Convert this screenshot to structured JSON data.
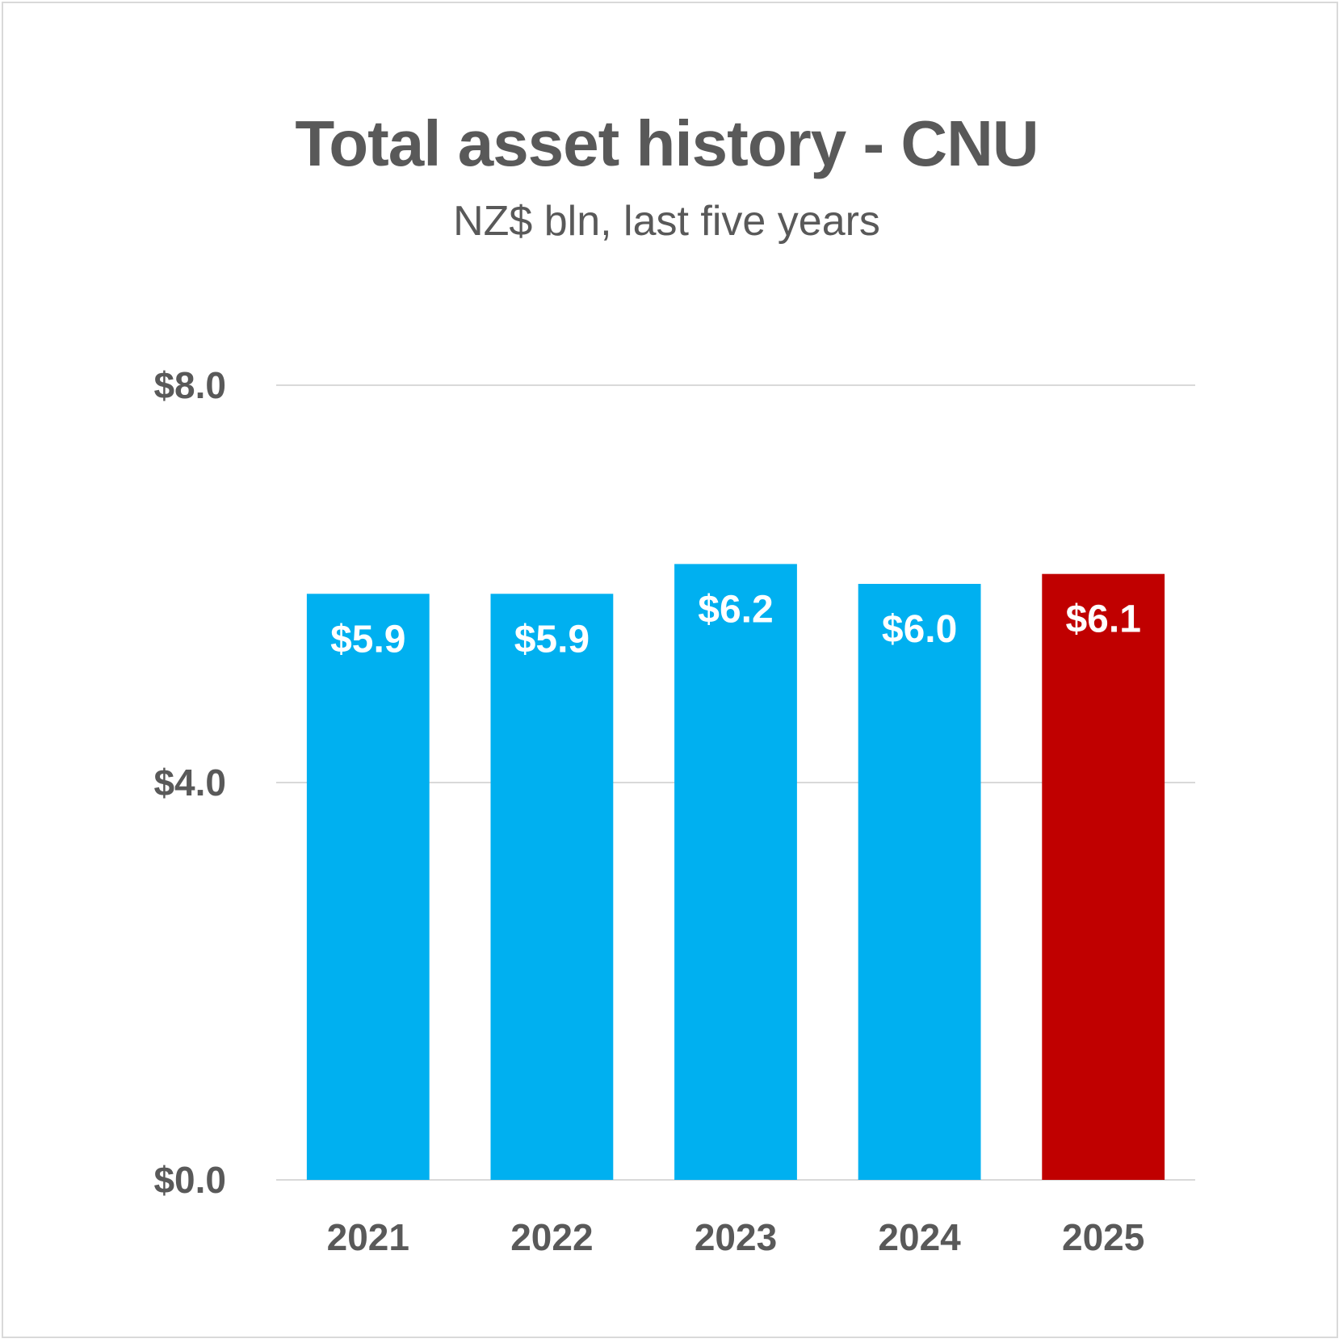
{
  "colors": {
    "bar_default": "#00b0f0",
    "bar_highlight": "#c00000",
    "gridline": "#d9d9d9",
    "text": "#595959",
    "label_text": "#ffffff"
  },
  "chart_data": {
    "type": "bar",
    "title": "Total asset history - CNU",
    "subtitle": "NZ$ bln, last five years",
    "xlabel": "",
    "ylabel": "",
    "categories": [
      "2021",
      "2022",
      "2023",
      "2024",
      "2025"
    ],
    "values": [
      5.9,
      5.9,
      6.2,
      6.0,
      6.1
    ],
    "data_labels": [
      "$5.9",
      "$5.9",
      "$6.2",
      "$6.0",
      "$6.1"
    ],
    "highlight_index": 4,
    "ylim": [
      0,
      8
    ],
    "y_ticks": [
      0,
      4,
      8
    ],
    "y_tick_labels": [
      "$0.0",
      "$4.0",
      "$8.0"
    ],
    "grid": true,
    "legend": "none"
  }
}
